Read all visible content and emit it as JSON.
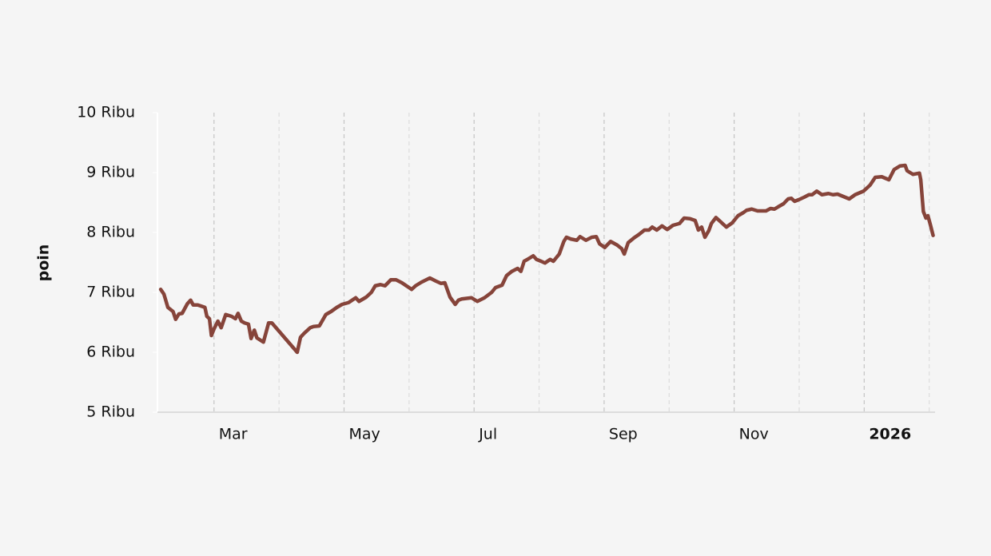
{
  "chart_data": {
    "type": "line",
    "y_label": "poin",
    "ylim": [
      5000,
      10000
    ],
    "yticks": [
      {
        "value": 5000,
        "label": "5 Ribu"
      },
      {
        "value": 6000,
        "label": "6 Ribu"
      },
      {
        "value": 7000,
        "label": "7 Ribu"
      },
      {
        "value": 8000,
        "label": "8 Ribu"
      },
      {
        "value": 9000,
        "label": "9 Ribu"
      },
      {
        "value": 10000,
        "label": "10 Ribu"
      }
    ],
    "xlim": [
      2.13,
      14.09
    ],
    "xticks": [
      {
        "value": 3,
        "label": "Mar"
      },
      {
        "value": 5,
        "label": "May"
      },
      {
        "value": 7,
        "label": "Jul"
      },
      {
        "value": 9,
        "label": "Sep"
      },
      {
        "value": 11,
        "label": "Nov"
      },
      {
        "value": 13,
        "label": "2026",
        "bold": true
      }
    ],
    "xminor": [
      4,
      6,
      8,
      10,
      12,
      14
    ],
    "grid": true,
    "series": [
      {
        "color": "#86443a",
        "x": [
          2.18,
          2.23,
          2.29,
          2.37,
          2.41,
          2.46,
          2.51,
          2.59,
          2.64,
          2.68,
          2.75,
          2.86,
          2.89,
          2.93,
          2.96,
          3.0,
          3.06,
          3.11,
          3.18,
          3.27,
          3.33,
          3.37,
          3.42,
          3.47,
          3.53,
          3.57,
          3.62,
          3.66,
          3.76,
          3.84,
          3.89,
          4.28,
          4.33,
          4.38,
          4.48,
          4.53,
          4.62,
          4.72,
          4.8,
          4.89,
          4.97,
          5.07,
          5.18,
          5.23,
          5.34,
          5.42,
          5.48,
          5.56,
          5.63,
          5.72,
          5.8,
          5.89,
          6.04,
          6.1,
          6.19,
          6.32,
          6.41,
          6.49,
          6.55,
          6.63,
          6.71,
          6.76,
          6.81,
          6.96,
          7.05,
          7.16,
          7.27,
          7.33,
          7.43,
          7.5,
          7.58,
          7.67,
          7.72,
          7.77,
          7.82,
          7.91,
          7.96,
          8.03,
          8.09,
          8.17,
          8.22,
          8.31,
          8.38,
          8.42,
          8.49,
          8.58,
          8.63,
          8.72,
          8.81,
          8.88,
          8.93,
          9.01,
          9.1,
          9.2,
          9.27,
          9.31,
          9.37,
          9.46,
          9.54,
          9.62,
          9.69,
          9.74,
          9.81,
          9.89,
          9.97,
          10.06,
          10.16,
          10.23,
          10.32,
          10.4,
          10.45,
          10.5,
          10.55,
          10.61,
          10.65,
          10.72,
          10.8,
          10.88,
          10.97,
          11.06,
          11.14,
          11.19,
          11.27,
          11.36,
          11.49,
          11.56,
          11.62,
          11.68,
          11.76,
          11.83,
          11.88,
          11.93,
          12.0,
          12.08,
          12.15,
          12.2,
          12.27,
          12.35,
          12.45,
          12.52,
          12.59,
          12.68,
          12.77,
          12.86,
          12.99,
          13.09,
          13.17,
          13.27,
          13.38,
          13.46,
          13.55,
          13.63,
          13.66,
          13.75,
          13.85,
          13.87,
          13.91,
          13.95,
          13.98,
          14.02,
          14.06
        ],
        "values": [
          7050,
          6970,
          6750,
          6680,
          6550,
          6640,
          6650,
          6810,
          6870,
          6790,
          6790,
          6750,
          6600,
          6560,
          6280,
          6390,
          6520,
          6410,
          6630,
          6600,
          6560,
          6650,
          6520,
          6490,
          6470,
          6230,
          6370,
          6240,
          6170,
          6490,
          6490,
          6000,
          6250,
          6310,
          6410,
          6430,
          6440,
          6630,
          6680,
          6750,
          6800,
          6830,
          6910,
          6850,
          6920,
          7000,
          7110,
          7130,
          7110,
          7210,
          7210,
          7160,
          7050,
          7110,
          7170,
          7240,
          7190,
          7150,
          7160,
          6920,
          6800,
          6870,
          6890,
          6910,
          6850,
          6910,
          7000,
          7080,
          7120,
          7280,
          7350,
          7400,
          7350,
          7520,
          7550,
          7610,
          7550,
          7520,
          7490,
          7550,
          7520,
          7640,
          7850,
          7920,
          7890,
          7870,
          7930,
          7870,
          7920,
          7930,
          7810,
          7750,
          7850,
          7790,
          7730,
          7640,
          7830,
          7910,
          7970,
          8040,
          8040,
          8090,
          8040,
          8110,
          8050,
          8120,
          8150,
          8240,
          8230,
          8200,
          8040,
          8090,
          7920,
          8030,
          8150,
          8250,
          8170,
          8090,
          8160,
          8280,
          8330,
          8370,
          8390,
          8360,
          8360,
          8400,
          8390,
          8430,
          8480,
          8560,
          8570,
          8520,
          8550,
          8590,
          8630,
          8630,
          8690,
          8630,
          8650,
          8630,
          8640,
          8600,
          8560,
          8630,
          8690,
          8790,
          8920,
          8930,
          8880,
          9050,
          9110,
          9120,
          9030,
          8970,
          8990,
          8880,
          8350,
          8240,
          8280,
          8120,
          7950
        ]
      }
    ]
  }
}
